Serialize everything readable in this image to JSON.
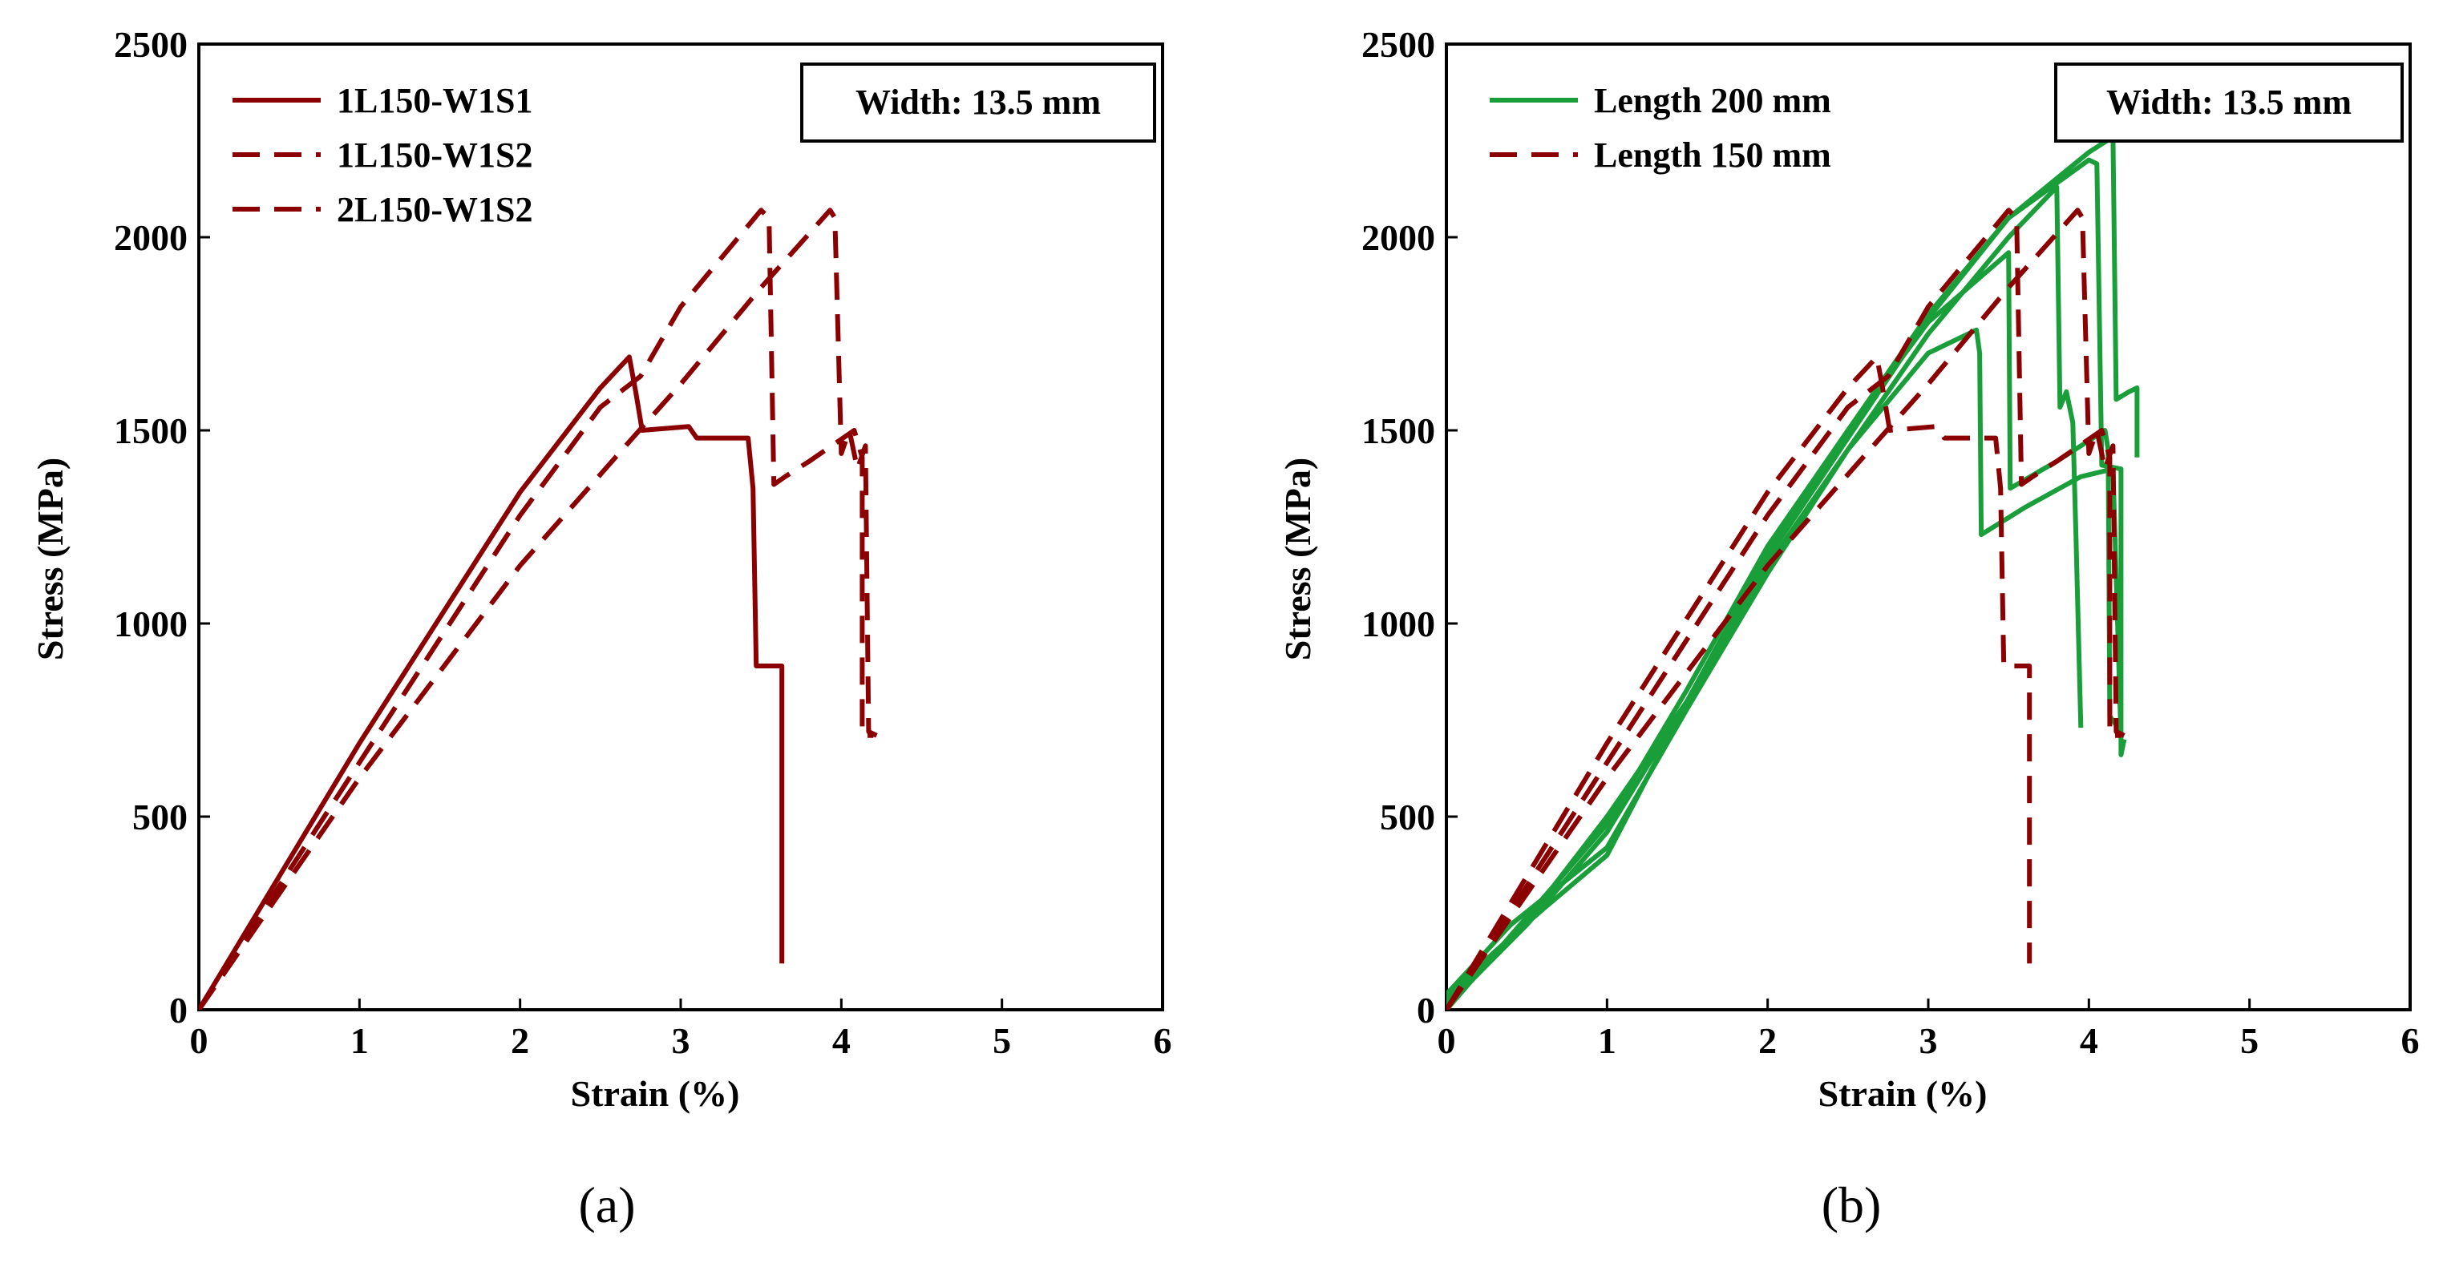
{
  "chart_data": [
    {
      "type": "line",
      "panel_label": "(a)",
      "xlabel": "Strain (%)",
      "ylabel": "Stress (MPa)",
      "xlim": [
        0,
        6
      ],
      "ylim": [
        0,
        2500
      ],
      "xticks": [
        "0",
        "1",
        "2",
        "3",
        "4",
        "5",
        "6"
      ],
      "yticks": [
        "0",
        "500",
        "1000",
        "1500",
        "2000",
        "2500"
      ],
      "annotation": "Width: 13.5 mm",
      "legend_position": "top-left",
      "series": [
        {
          "name": "1L150-W1S1",
          "color": "#8B0000",
          "dash": "solid",
          "points": [
            [
              0,
              0
            ],
            [
              1,
              690
            ],
            [
              2,
              1340
            ],
            [
              2.5,
              1610
            ],
            [
              2.68,
              1690
            ],
            [
              2.72,
              1600
            ],
            [
              2.76,
              1500
            ],
            [
              3.05,
              1510
            ],
            [
              3.1,
              1480
            ],
            [
              3.42,
              1480
            ],
            [
              3.45,
              1350
            ],
            [
              3.47,
              890
            ],
            [
              3.63,
              890
            ],
            [
              3.63,
              120
            ]
          ]
        },
        {
          "name": "1L150-W1S2",
          "color": "#8B0000",
          "dash": "dashed",
          "points": [
            [
              0,
              0
            ],
            [
              1,
              640
            ],
            [
              2,
              1280
            ],
            [
              2.5,
              1560
            ],
            [
              2.75,
              1640
            ],
            [
              3,
              1820
            ],
            [
              3.5,
              2070
            ],
            [
              3.55,
              2050
            ],
            [
              3.58,
              1360
            ],
            [
              3.65,
              1380
            ],
            [
              3.8,
              1420
            ],
            [
              4.08,
              1500
            ],
            [
              4.13,
              1430
            ],
            [
              4.13,
              710
            ],
            [
              4.2,
              710
            ]
          ]
        },
        {
          "name": "2L150-W1S2",
          "color": "#8B0000",
          "dash": "dashed",
          "points": [
            [
              0,
              0
            ],
            [
              1,
              600
            ],
            [
              2,
              1150
            ],
            [
              2.7,
              1480
            ],
            [
              3,
              1620
            ],
            [
              3.5,
              1870
            ],
            [
              3.93,
              2070
            ],
            [
              3.96,
              2050
            ],
            [
              4.0,
              1440
            ],
            [
              4.05,
              1500
            ],
            [
              4.1,
              1400
            ],
            [
              4.15,
              1460
            ],
            [
              4.17,
              720
            ],
            [
              4.22,
              710
            ]
          ]
        }
      ]
    },
    {
      "type": "line",
      "panel_label": "(b)",
      "xlabel": "Strain (%)",
      "ylabel": "Stress (MPa)",
      "xlim": [
        0,
        6
      ],
      "ylim": [
        0,
        2500
      ],
      "xticks": [
        "0",
        "1",
        "2",
        "3",
        "4",
        "5",
        "6"
      ],
      "yticks": [
        "0",
        "500",
        "1000",
        "1500",
        "2000",
        "2500"
      ],
      "annotation": "Width: 13.5 mm",
      "legend_position": "top-left",
      "legend": [
        {
          "name": "Length 200 mm",
          "color": "#1A9E3A",
          "dash": "solid"
        },
        {
          "name": "Length 150 mm",
          "color": "#8B0000",
          "dash": "dashed"
        }
      ],
      "series": [
        {
          "name": "Length 200 mm",
          "color": "#1A9E3A",
          "dash": "solid",
          "points": [
            [
              0,
              30
            ],
            [
              0.3,
              150
            ],
            [
              0.6,
              260
            ],
            [
              1,
              400
            ],
            [
              1.5,
              800
            ],
            [
              2,
              1150
            ],
            [
              2.5,
              1450
            ],
            [
              3,
              1700
            ],
            [
              3.3,
              1760
            ],
            [
              3.32,
              1700
            ],
            [
              3.33,
              1230
            ],
            [
              3.6,
              1300
            ],
            [
              3.95,
              1380
            ],
            [
              4.15,
              1400
            ],
            [
              4.2,
              700
            ]
          ]
        },
        {
          "name": "Length 200 mm",
          "color": "#1A9E3A",
          "dash": "solid",
          "points": [
            [
              0,
              20
            ],
            [
              0.5,
              230
            ],
            [
              1,
              500
            ],
            [
              1.5,
              800
            ],
            [
              2,
              1180
            ],
            [
              2.5,
              1500
            ],
            [
              3,
              1780
            ],
            [
              3.5,
              1960
            ],
            [
              3.51,
              1350
            ],
            [
              3.8,
              1420
            ],
            [
              4.1,
              1500
            ],
            [
              4.12,
              1450
            ],
            [
              4.13,
              760
            ],
            [
              4.2,
              720
            ]
          ]
        },
        {
          "name": "Length 200 mm",
          "color": "#1A9E3A",
          "dash": "solid",
          "points": [
            [
              0,
              40
            ],
            [
              0.4,
              220
            ],
            [
              1,
              420
            ],
            [
              1.5,
              780
            ],
            [
              2,
              1130
            ],
            [
              2.5,
              1450
            ],
            [
              3,
              1750
            ],
            [
              3.5,
              2000
            ],
            [
              3.8,
              2130
            ],
            [
              3.82,
              1560
            ],
            [
              3.86,
              1600
            ],
            [
              3.9,
              1520
            ],
            [
              3.92,
              1220
            ],
            [
              3.95,
              730
            ]
          ]
        },
        {
          "name": "Length 200 mm",
          "color": "#1A9E3A",
          "dash": "solid",
          "points": [
            [
              0,
              0
            ],
            [
              0.5,
              240
            ],
            [
              1,
              480
            ],
            [
              1.5,
              830
            ],
            [
              2,
              1200
            ],
            [
              2.5,
              1500
            ],
            [
              3,
              1800
            ],
            [
              3.5,
              2050
            ],
            [
              4,
              2200
            ],
            [
              4.05,
              2190
            ],
            [
              4.08,
              1410
            ],
            [
              4.2,
              1400
            ],
            [
              4.2,
              660
            ],
            [
              4.22,
              700
            ]
          ]
        },
        {
          "name": "Length 200 mm",
          "color": "#1A9E3A",
          "dash": "solid",
          "points": [
            [
              0,
              10
            ],
            [
              0.5,
              220
            ],
            [
              1,
              460
            ],
            [
              1.5,
              800
            ],
            [
              2,
              1170
            ],
            [
              2.5,
              1480
            ],
            [
              3,
              1790
            ],
            [
              3.5,
              2050
            ],
            [
              4,
              2220
            ],
            [
              4.15,
              2260
            ],
            [
              4.17,
              1580
            ],
            [
              4.25,
              1600
            ],
            [
              4.3,
              1610
            ],
            [
              4.3,
              1430
            ]
          ]
        },
        {
          "name": "Length 150 mm",
          "color": "#8B0000",
          "dash": "dashed",
          "points": [
            [
              0,
              0
            ],
            [
              1,
              690
            ],
            [
              2,
              1340
            ],
            [
              2.5,
              1610
            ],
            [
              2.68,
              1690
            ],
            [
              2.72,
              1600
            ],
            [
              2.76,
              1500
            ],
            [
              3.05,
              1510
            ],
            [
              3.1,
              1480
            ],
            [
              3.42,
              1480
            ],
            [
              3.45,
              1350
            ],
            [
              3.47,
              890
            ],
            [
              3.63,
              890
            ],
            [
              3.63,
              120
            ]
          ]
        },
        {
          "name": "Length 150 mm",
          "color": "#8B0000",
          "dash": "dashed",
          "points": [
            [
              0,
              0
            ],
            [
              1,
              640
            ],
            [
              2,
              1280
            ],
            [
              2.5,
              1560
            ],
            [
              2.75,
              1640
            ],
            [
              3,
              1820
            ],
            [
              3.5,
              2070
            ],
            [
              3.55,
              2050
            ],
            [
              3.58,
              1360
            ],
            [
              3.65,
              1380
            ],
            [
              3.8,
              1420
            ],
            [
              4.08,
              1500
            ],
            [
              4.13,
              1430
            ],
            [
              4.13,
              710
            ],
            [
              4.2,
              710
            ]
          ]
        },
        {
          "name": "Length 150 mm",
          "color": "#8B0000",
          "dash": "dashed",
          "points": [
            [
              0,
              0
            ],
            [
              1,
              600
            ],
            [
              2,
              1150
            ],
            [
              2.7,
              1480
            ],
            [
              3,
              1620
            ],
            [
              3.5,
              1870
            ],
            [
              3.93,
              2070
            ],
            [
              3.96,
              2050
            ],
            [
              4.0,
              1440
            ],
            [
              4.05,
              1500
            ],
            [
              4.1,
              1400
            ],
            [
              4.15,
              1460
            ],
            [
              4.17,
              720
            ],
            [
              4.22,
              710
            ]
          ]
        }
      ]
    }
  ]
}
